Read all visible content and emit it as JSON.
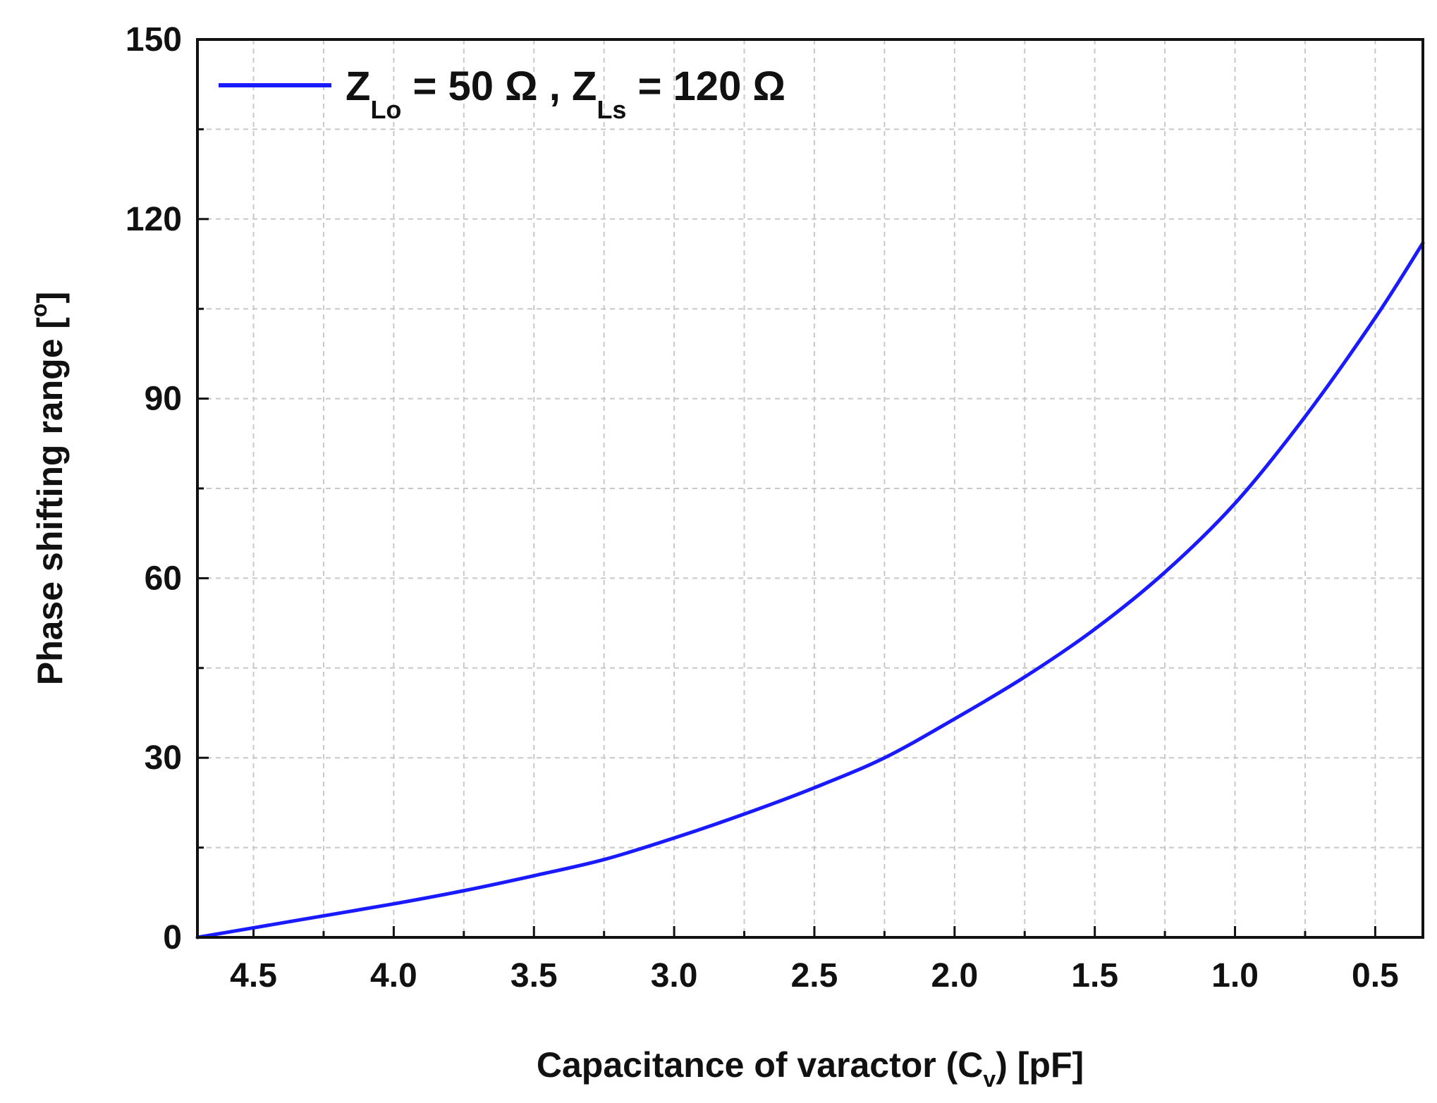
{
  "chart_data": {
    "type": "line",
    "xlabel": {
      "main": "Capacitance of varactor (C",
      "sub": "v",
      "end": ") [pF]"
    },
    "ylabel": {
      "main": "Phase shifting range [",
      "sup": "o",
      "end": "]"
    },
    "xlim": [
      4.7,
      0.33
    ],
    "ylim": [
      0,
      150
    ],
    "x_reversed": true,
    "x_ticks": [
      "4.5",
      "4.0",
      "3.5",
      "3.0",
      "2.5",
      "2.0",
      "1.5",
      "1.0",
      "0.5"
    ],
    "y_ticks": [
      "0",
      "30",
      "60",
      "90",
      "120",
      "150"
    ],
    "grid": true,
    "legend_position": "top-left",
    "series": [
      {
        "name": {
          "z1": "Z",
          "z1_sub": "Lo",
          "z1_val": " = 50 Ω  , ",
          "z2": "Z",
          "z2_sub": "Ls",
          "z2_val": " = 120 Ω"
        },
        "color": "#1a1aff",
        "x": [
          4.7,
          4.5,
          4.25,
          4.0,
          3.75,
          3.5,
          3.25,
          3.0,
          2.75,
          2.5,
          2.25,
          2.0,
          1.75,
          1.5,
          1.25,
          1.0,
          0.75,
          0.5,
          0.33
        ],
        "y": [
          0,
          1.6,
          3.6,
          5.6,
          7.8,
          10.3,
          13.0,
          16.6,
          20.6,
          25.0,
          30.0,
          36.5,
          43.5,
          51.5,
          61.0,
          72.5,
          87.0,
          103.5,
          116.0
        ]
      }
    ]
  }
}
